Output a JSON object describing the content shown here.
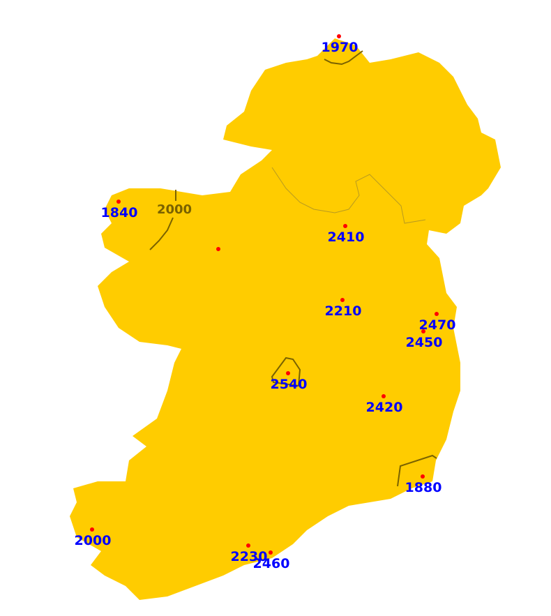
{
  "map": {
    "colors": {
      "land": "#ffcc00",
      "contour": "#7a6200",
      "station_dot": "#ff0000",
      "station_label": "#0000ff",
      "background": "#ffffff"
    },
    "contour_labels": [
      "2000"
    ],
    "stations": [
      {
        "value": "1970"
      },
      {
        "value": "1840"
      },
      {
        "value": ""
      },
      {
        "value": "2410"
      },
      {
        "value": "2210"
      },
      {
        "value": "2470"
      },
      {
        "value": "2450"
      },
      {
        "value": "2540"
      },
      {
        "value": "2420"
      },
      {
        "value": "1880"
      },
      {
        "value": "2000"
      },
      {
        "value": "2230"
      },
      {
        "value": "2460"
      }
    ]
  }
}
